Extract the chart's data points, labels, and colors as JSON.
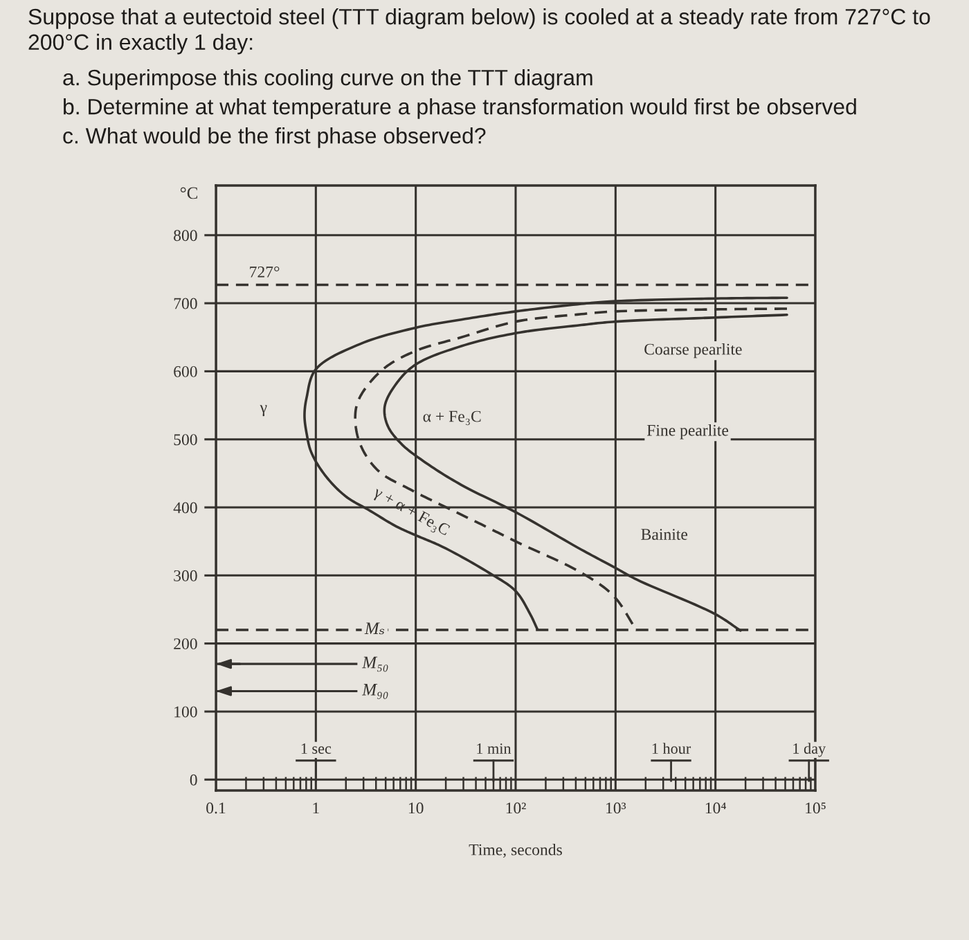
{
  "chart_data": {
    "type": "line",
    "title": "Suppose that a eutectoid steel (TTT diagram below) is cooled at a steady rate from 727°C to 200°C in exactly 1 day:",
    "xlabel": "Time, seconds",
    "ylabel": "°C",
    "log": "x",
    "grid": true,
    "xlim": [
      0.1,
      100000
    ],
    "xticks": [
      0.1,
      1,
      10,
      {
        "value": 100,
        "label": "10²"
      },
      {
        "value": 1000,
        "label": "10³"
      },
      {
        "value": 10000,
        "label": "10⁴"
      },
      {
        "value": 100000,
        "label": "10⁵"
      }
    ],
    "ylim": [
      -16,
      873
    ],
    "yticks": [
      0,
      100,
      200,
      300,
      400,
      500,
      600,
      700,
      800
    ],
    "series": [
      {
        "color": "#35322e",
        "line_style": "solid",
        "x": [
          52000,
          10000,
          1000,
          454,
          100,
          28.6,
          10,
          2.76,
          1.0,
          0.81,
          0.77,
          0.81,
          0.9,
          1.24,
          2.0,
          3.4,
          6.4,
          10,
          18.6,
          54,
          100,
          140,
          165
        ],
        "values": [
          708,
          707,
          703,
          699,
          688,
          676,
          664,
          640,
          603,
          562,
          535,
          508,
          481,
          447,
          416,
          396,
          372,
          359,
          342,
          304,
          277,
          243,
          221
        ]
      },
      {
        "color": "#35322e",
        "line_style": "dashed",
        "x": [
          52000,
          10000,
          1000,
          454,
          100,
          28.6,
          10,
          4.7,
          2.76,
          2.48,
          2.76,
          4.2,
          8.9,
          23,
          50,
          100,
          454,
          955,
          1625
        ],
        "values": [
          692,
          691,
          688,
          684,
          673,
          650,
          630,
          603,
          562,
          535,
          494,
          454,
          426,
          396,
          372,
          350,
          304,
          270,
          219
        ]
      },
      {
        "color": "#35322e",
        "line_style": "solid",
        "x": [
          52000,
          10000,
          1000,
          454,
          100,
          28.6,
          10,
          6.4,
          4.9,
          5.2,
          7.1,
          12.2,
          28.6,
          100,
          454,
          1000,
          1625,
          10000,
          17800
        ],
        "values": [
          683,
          679,
          673,
          668,
          656,
          637,
          610,
          582,
          549,
          521,
          494,
          467,
          433,
          393,
          338,
          311,
          294,
          243,
          219
        ]
      }
    ],
    "ref_lines": [
      {
        "axis": "y",
        "value": 727,
        "label": "727°",
        "color": "#35322e",
        "line_style": "dashed"
      },
      {
        "axis": "y",
        "value": 220,
        "label": "Mₛ",
        "color": "#35322e",
        "line_style": "dashed"
      },
      {
        "axis": "y",
        "value": 170,
        "label": "M₅₀",
        "color": "#35322e",
        "line_style": "solid"
      },
      {
        "axis": "y",
        "value": 130,
        "label": "M₉₀",
        "color": "#35322e",
        "line_style": "solid"
      }
    ],
    "annotations": [
      "a. Superimpose this cooling curve on the TTT diagram",
      "b. Determine at what temperature a phase transformation would first be observed",
      "c. What would be the first phase observed?",
      "γ",
      "α + Fe₃C",
      "γ + α + Fe₃C",
      "Coarse pearlite",
      "Fine pearlite",
      "Bainite",
      "1 sec",
      "1 min",
      "1 hour",
      "1 day"
    ]
  }
}
